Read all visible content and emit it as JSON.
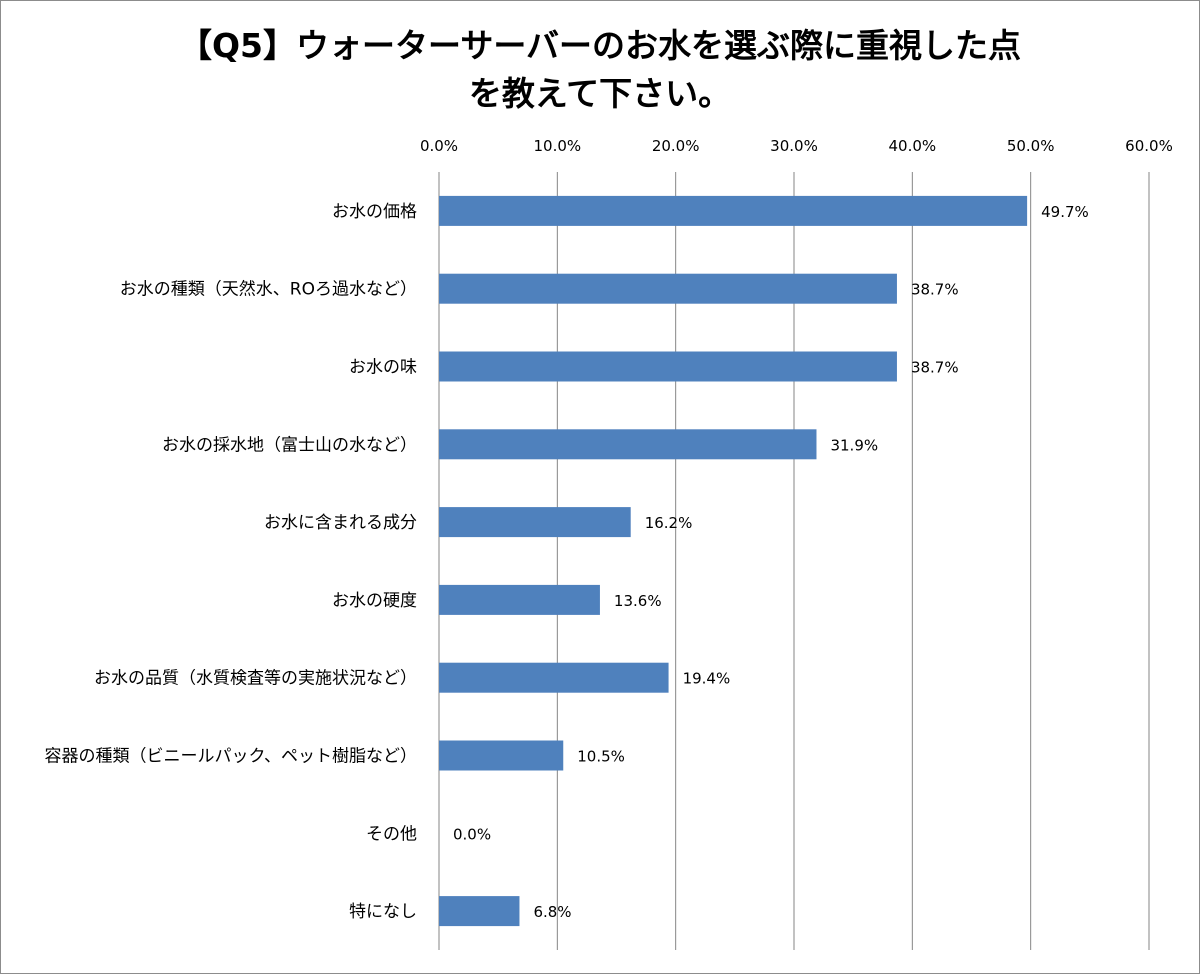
{
  "title_line1": "【Q5】ウォーターサーバーのお水を選ぶ際に重視した点",
  "title_line2": "を教えて下さい。",
  "chart_data": {
    "type": "bar",
    "orientation": "horizontal",
    "title": "【Q5】ウォーターサーバーのお水を選ぶ際に重視した点を教えて下さい。",
    "categories": [
      "お水の価格",
      "お水の種類（天然水、ROろ過水など）",
      "お水の味",
      "お水の採水地（富士山の水など）",
      "お水に含まれる成分",
      "お水の硬度",
      "お水の品質（水質検査等の実施状況など）",
      "容器の種類（ビニールパック、ペット樹脂など）",
      "その他",
      "特になし"
    ],
    "values": [
      49.7,
      38.7,
      38.7,
      31.9,
      16.2,
      13.6,
      19.4,
      10.5,
      0.0,
      6.8
    ],
    "data_labels": [
      "49.7%",
      "38.7%",
      "38.7%",
      "31.9%",
      "16.2%",
      "13.6%",
      "19.4%",
      "10.5%",
      "0.0%",
      "6.8%"
    ],
    "xlim": [
      0,
      60
    ],
    "xticks": [
      "0.0%",
      "10.0%",
      "20.0%",
      "30.0%",
      "40.0%",
      "50.0%",
      "60.0%"
    ],
    "xaxis_position": "top",
    "grid": true,
    "bar_color": "#4F81BD",
    "xlabel": "",
    "ylabel": ""
  }
}
